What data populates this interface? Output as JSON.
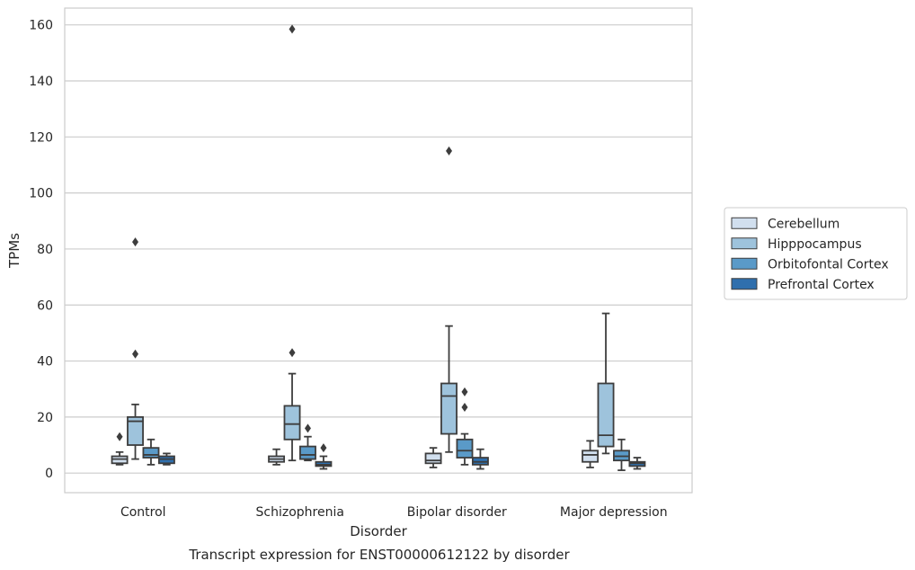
{
  "chart_data": {
    "type": "box",
    "xlabel": "Disorder",
    "ylabel": "TPMs",
    "caption": "Transcript expression for ENST00000612122 by disorder",
    "ylim": [
      -7,
      166
    ],
    "yticks": [
      0,
      20,
      40,
      60,
      80,
      100,
      120,
      140,
      160
    ],
    "grid": "horizontal",
    "legend_position": "right",
    "categories": [
      "Control",
      "Schizophrenia",
      "Bipolar disorder",
      "Major depression"
    ],
    "series": [
      {
        "name": "Cerebellum",
        "color": "#d1dfee",
        "boxes": [
          {
            "whisker_low": 3,
            "q1": 3.5,
            "median": 5,
            "q3": 6,
            "whisker_high": 7.5,
            "outliers": [
              13
            ]
          },
          {
            "whisker_low": 3,
            "q1": 4,
            "median": 5,
            "q3": 6,
            "whisker_high": 8.5,
            "outliers": []
          },
          {
            "whisker_low": 2,
            "q1": 3.5,
            "median": 4.5,
            "q3": 7,
            "whisker_high": 9,
            "outliers": []
          },
          {
            "whisker_low": 2,
            "q1": 4,
            "median": 6.5,
            "q3": 8,
            "whisker_high": 11.5,
            "outliers": []
          }
        ]
      },
      {
        "name": "Hipppocampus",
        "color": "#9ec3dc",
        "boxes": [
          {
            "whisker_low": 5,
            "q1": 10,
            "median": 18.5,
            "q3": 20,
            "whisker_high": 24.5,
            "outliers": [
              42.5,
              82.5
            ]
          },
          {
            "whisker_low": 4.5,
            "q1": 12,
            "median": 17.5,
            "q3": 24,
            "whisker_high": 35.5,
            "outliers": [
              43,
              158.5
            ]
          },
          {
            "whisker_low": 7.5,
            "q1": 14,
            "median": 27.5,
            "q3": 32,
            "whisker_high": 52.5,
            "outliers": [
              115
            ]
          },
          {
            "whisker_low": 7,
            "q1": 9.5,
            "median": 13.5,
            "q3": 32,
            "whisker_high": 57,
            "outliers": []
          }
        ]
      },
      {
        "name": "Orbitofontal Cortex",
        "color": "#5a9ac8",
        "boxes": [
          {
            "whisker_low": 3,
            "q1": 5.5,
            "median": 6.5,
            "q3": 9,
            "whisker_high": 12,
            "outliers": []
          },
          {
            "whisker_low": 4.5,
            "q1": 5,
            "median": 6.5,
            "q3": 9.5,
            "whisker_high": 13,
            "outliers": [
              16
            ]
          },
          {
            "whisker_low": 3,
            "q1": 5.5,
            "median": 8,
            "q3": 12,
            "whisker_high": 14,
            "outliers": [
              23.5,
              29
            ]
          },
          {
            "whisker_low": 1,
            "q1": 4.5,
            "median": 6,
            "q3": 8,
            "whisker_high": 12,
            "outliers": []
          }
        ]
      },
      {
        "name": "Prefrontal Cortex",
        "color": "#2f6fad",
        "boxes": [
          {
            "whisker_low": 3,
            "q1": 3.5,
            "median": 5,
            "q3": 6,
            "whisker_high": 7,
            "outliers": []
          },
          {
            "whisker_low": 1.5,
            "q1": 2.5,
            "median": 3,
            "q3": 4,
            "whisker_high": 6,
            "outliers": [
              9
            ]
          },
          {
            "whisker_low": 1.5,
            "q1": 3,
            "median": 4,
            "q3": 5.5,
            "whisker_high": 8.5,
            "outliers": []
          },
          {
            "whisker_low": 1.5,
            "q1": 2.5,
            "median": 3.5,
            "q3": 4,
            "whisker_high": 5.5,
            "outliers": []
          }
        ]
      }
    ]
  }
}
